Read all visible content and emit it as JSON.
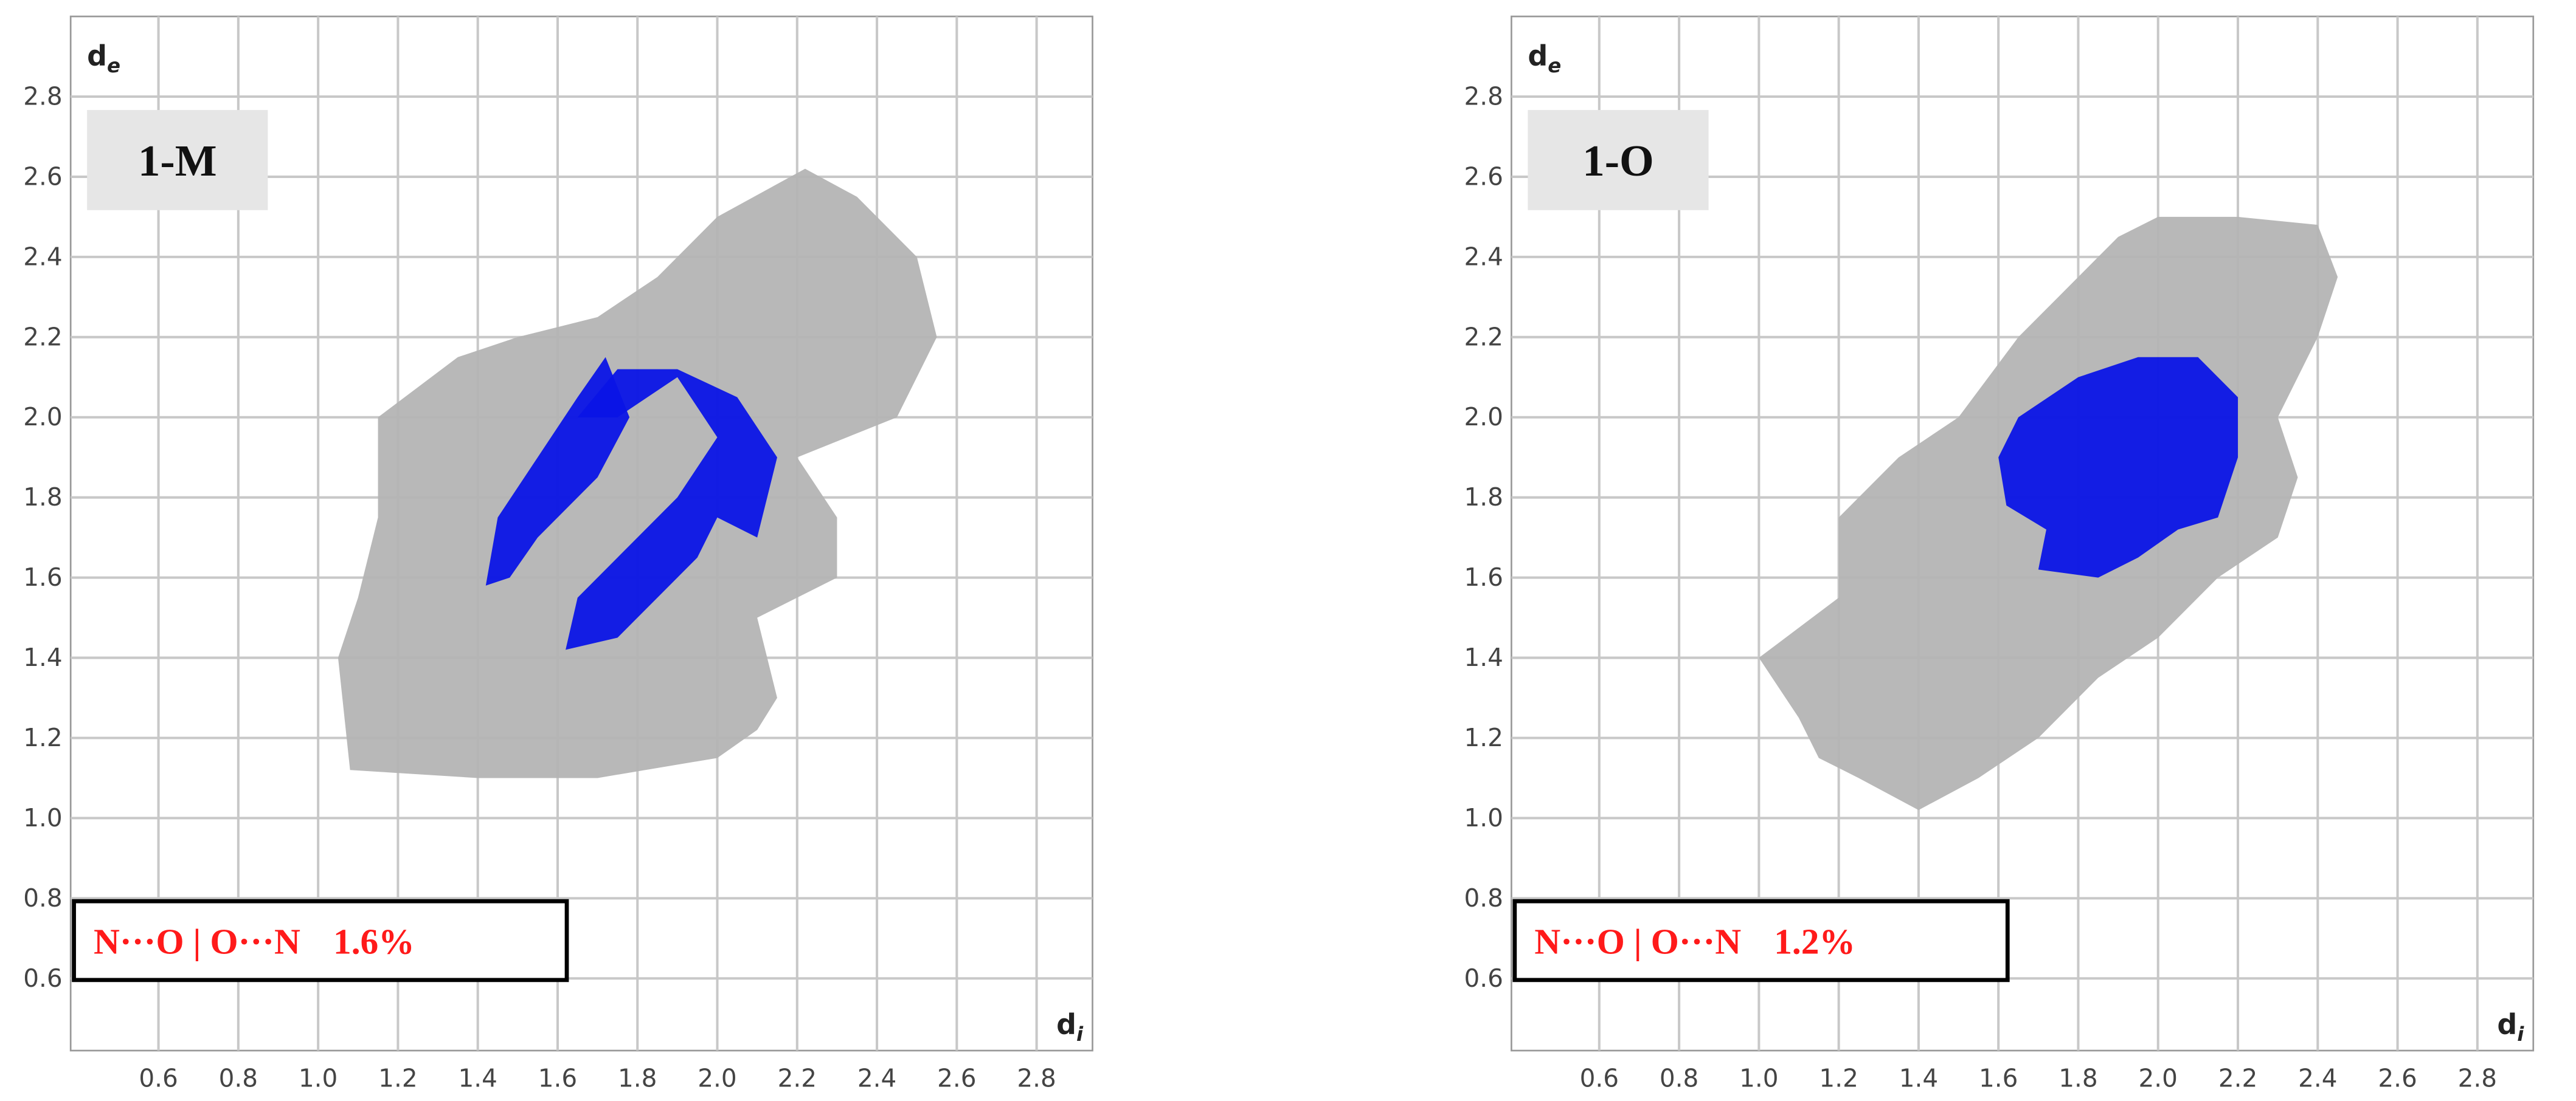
{
  "chart_data": [
    {
      "type": "fingerprint",
      "title": "1-M",
      "xlabel": "d",
      "xlabel_sub": "i",
      "ylabel": "d",
      "ylabel_sub": "e",
      "annotation": "N···O | O···N",
      "values": [
        1.6
      ],
      "value_labels": [
        "1.6%"
      ],
      "xlim": [
        0.38,
        2.94
      ],
      "ylim": [
        0.42,
        3.0
      ],
      "xticks": [
        0.6,
        0.8,
        {
          "value": 1,
          "label": "1.0"
        },
        1.2,
        1.4,
        1.6,
        1.8,
        {
          "value": 2,
          "label": "2.0"
        },
        2.2,
        2.4,
        2.6,
        2.8
      ],
      "yticks": [
        0.6,
        0.8,
        {
          "value": 1,
          "label": "1.0"
        },
        1.2,
        1.4,
        1.6,
        1.8,
        {
          "value": 2,
          "label": "2.0"
        },
        2.2,
        2.4,
        2.6,
        2.8
      ],
      "grid": true,
      "series": [
        {
          "color": "#b4b4b4",
          "x": [
            1.05,
            1.08,
            1.4,
            1.7,
            2.0,
            2.1,
            2.15,
            2.1,
            2.3,
            2.3,
            2.2,
            2.45,
            2.55,
            2.5,
            2.35,
            2.22,
            2.0,
            1.85,
            1.7,
            1.5,
            1.35,
            1.15,
            1.15,
            1.1
          ],
          "y": [
            1.4,
            1.12,
            1.1,
            1.1,
            1.15,
            1.22,
            1.3,
            1.5,
            1.6,
            1.75,
            1.9,
            2.0,
            2.2,
            2.4,
            2.55,
            2.62,
            2.5,
            2.35,
            2.25,
            2.2,
            2.15,
            2.0,
            1.75,
            1.55
          ]
        },
        {
          "color": "#0a14e6",
          "x": [
            1.42,
            1.45,
            1.55,
            1.65,
            1.72,
            1.78,
            1.7,
            1.55,
            1.48
          ],
          "y": [
            1.58,
            1.75,
            1.9,
            2.05,
            2.15,
            2.0,
            1.85,
            1.7,
            1.6
          ]
        },
        {
          "color": "#0a14e6",
          "x": [
            1.62,
            1.65,
            1.75,
            1.9,
            2.0,
            1.9,
            1.75,
            1.65,
            1.75,
            1.9,
            2.05,
            2.15,
            2.1,
            2.0,
            1.95,
            1.85,
            1.75
          ],
          "y": [
            1.42,
            1.55,
            1.65,
            1.8,
            1.95,
            2.1,
            2.0,
            2.0,
            2.12,
            2.12,
            2.05,
            1.9,
            1.7,
            1.75,
            1.65,
            1.55,
            1.45
          ]
        }
      ]
    },
    {
      "type": "fingerprint",
      "title": "1-O",
      "xlabel": "d",
      "xlabel_sub": "i",
      "ylabel": "d",
      "ylabel_sub": "e",
      "annotation": "N···O | O···N",
      "values": [
        1.2
      ],
      "value_labels": [
        "1.2%"
      ],
      "xlim": [
        0.38,
        2.94
      ],
      "ylim": [
        0.42,
        3.0
      ],
      "xticks": [
        0.6,
        0.8,
        {
          "value": 1,
          "label": "1.0"
        },
        1.2,
        1.4,
        1.6,
        1.8,
        {
          "value": 2,
          "label": "2.0"
        },
        2.2,
        2.4,
        2.6,
        2.8
      ],
      "yticks": [
        0.6,
        0.8,
        {
          "value": 1,
          "label": "1.0"
        },
        1.2,
        1.4,
        1.6,
        1.8,
        {
          "value": 2,
          "label": "2.0"
        },
        2.2,
        2.4,
        2.6,
        2.8
      ],
      "grid": true,
      "series": [
        {
          "color": "#b4b4b4",
          "x": [
            1.0,
            1.2,
            1.2,
            1.35,
            1.5,
            1.65,
            1.75,
            1.9,
            2.0,
            2.2,
            2.4,
            2.45,
            2.4,
            2.3,
            2.35,
            2.3,
            2.15,
            2.0,
            1.85,
            1.7,
            1.55,
            1.4,
            1.25,
            1.15,
            1.1
          ],
          "y": [
            1.4,
            1.55,
            1.75,
            1.9,
            2.0,
            2.2,
            2.3,
            2.45,
            2.5,
            2.5,
            2.48,
            2.35,
            2.2,
            2.0,
            1.85,
            1.7,
            1.6,
            1.45,
            1.35,
            1.2,
            1.1,
            1.02,
            1.1,
            1.15,
            1.25
          ]
        },
        {
          "color": "#0a14e6",
          "x": [
            1.6,
            1.65,
            1.8,
            1.95,
            2.1,
            2.2,
            2.2,
            2.15,
            2.05,
            1.95,
            1.85,
            1.7,
            1.72,
            1.62
          ],
          "y": [
            1.9,
            2.0,
            2.1,
            2.15,
            2.15,
            2.05,
            1.9,
            1.75,
            1.72,
            1.65,
            1.6,
            1.62,
            1.72,
            1.78
          ]
        }
      ]
    }
  ]
}
